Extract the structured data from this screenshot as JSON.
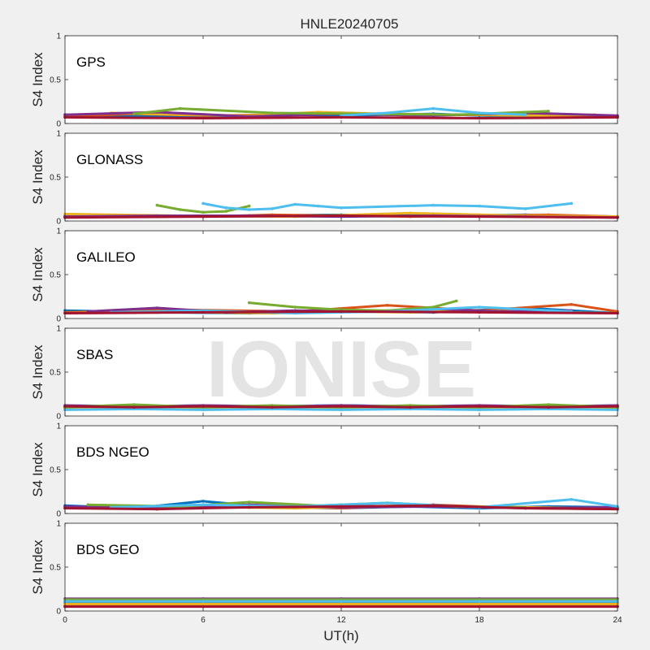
{
  "chart_data": {
    "type": "scatter",
    "title": "HNLE20240705",
    "xlabel": "UT(h)",
    "ylabel": "S4 Index",
    "xlim": [
      0,
      24
    ],
    "ylim": [
      0,
      1
    ],
    "xticks": [
      "0",
      "6",
      "12",
      "18",
      "24"
    ],
    "yticks": [
      "0",
      "0.5",
      "1"
    ],
    "grid": false,
    "watermark": "IONISE",
    "series_colors": [
      "#0072BD",
      "#D95319",
      "#EDB120",
      "#7E2F8E",
      "#77AC30",
      "#4DBEEE",
      "#A2142F"
    ],
    "panels": [
      {
        "label": "GPS",
        "series": [
          {
            "x": [
              0,
              2,
              4,
              6,
              8,
              10,
              12,
              14,
              16,
              18,
              20,
              22,
              24
            ],
            "y": [
              0.1,
              0.09,
              0.08,
              0.07,
              0.09,
              0.1,
              0.09,
              0.1,
              0.11,
              0.09,
              0.08,
              0.1,
              0.08
            ]
          },
          {
            "x": [
              0,
              3,
              6,
              9,
              12,
              15,
              18,
              21,
              24
            ],
            "y": [
              0.08,
              0.11,
              0.09,
              0.1,
              0.12,
              0.09,
              0.1,
              0.09,
              0.08
            ]
          },
          {
            "x": [
              2,
              5,
              8,
              11,
              14,
              17,
              20,
              23
            ],
            "y": [
              0.12,
              0.1,
              0.09,
              0.13,
              0.11,
              0.1,
              0.09,
              0.1
            ]
          },
          {
            "x": [
              0,
              4,
              8,
              12,
              16,
              20,
              24
            ],
            "y": [
              0.1,
              0.13,
              0.08,
              0.11,
              0.09,
              0.12,
              0.09
            ]
          },
          {
            "x": [
              3,
              5,
              9,
              13,
              17,
              21
            ],
            "y": [
              0.11,
              0.17,
              0.12,
              0.11,
              0.1,
              0.14
            ]
          },
          {
            "x": [
              12,
              14,
              16,
              18,
              20
            ],
            "y": [
              0.09,
              0.12,
              0.17,
              0.12,
              0.1
            ]
          },
          {
            "x": [
              0,
              6,
              12,
              18,
              24
            ],
            "y": [
              0.07,
              0.06,
              0.07,
              0.06,
              0.07
            ]
          }
        ]
      },
      {
        "label": "GLONASS",
        "series": [
          {
            "x": [
              0,
              4,
              8,
              12,
              16,
              20,
              24
            ],
            "y": [
              0.06,
              0.05,
              0.06,
              0.07,
              0.06,
              0.07,
              0.05
            ]
          },
          {
            "x": [
              0,
              3,
              6,
              9,
              12,
              15,
              18,
              21,
              24
            ],
            "y": [
              0.05,
              0.06,
              0.05,
              0.07,
              0.06,
              0.05,
              0.06,
              0.07,
              0.05
            ]
          },
          {
            "x": [
              0,
              5,
              10,
              15,
              20,
              24
            ],
            "y": [
              0.08,
              0.06,
              0.05,
              0.09,
              0.06,
              0.05
            ]
          },
          {
            "x": [
              0,
              4,
              8,
              12,
              16,
              20,
              24
            ],
            "y": [
              0.05,
              0.06,
              0.06,
              0.05,
              0.06,
              0.05,
              0.04
            ]
          },
          {
            "x": [
              4,
              5,
              6,
              7,
              8
            ],
            "y": [
              0.18,
              0.13,
              0.1,
              0.11,
              0.17
            ]
          },
          {
            "x": [
              6,
              7,
              8,
              9,
              10,
              11,
              12,
              16,
              18,
              20,
              22
            ],
            "y": [
              0.2,
              0.15,
              0.13,
              0.14,
              0.19,
              0.17,
              0.15,
              0.18,
              0.17,
              0.14,
              0.2
            ]
          },
          {
            "x": [
              0,
              6,
              12,
              18,
              24
            ],
            "y": [
              0.04,
              0.05,
              0.06,
              0.05,
              0.04
            ]
          }
        ]
      },
      {
        "label": "GALILEO",
        "series": [
          {
            "x": [
              0,
              4,
              8,
              12,
              16,
              20,
              24
            ],
            "y": [
              0.09,
              0.07,
              0.06,
              0.08,
              0.07,
              0.12,
              0.06
            ]
          },
          {
            "x": [
              0,
              5,
              10,
              14,
              18,
              22,
              24
            ],
            "y": [
              0.07,
              0.1,
              0.08,
              0.15,
              0.09,
              0.16,
              0.08
            ]
          },
          {
            "x": [
              0,
              3,
              6,
              9,
              12,
              15,
              18,
              21,
              24
            ],
            "y": [
              0.06,
              0.08,
              0.07,
              0.06,
              0.08,
              0.07,
              0.09,
              0.07,
              0.06
            ]
          },
          {
            "x": [
              1,
              4,
              7,
              10,
              13,
              16,
              19,
              22
            ],
            "y": [
              0.08,
              0.12,
              0.07,
              0.09,
              0.08,
              0.11,
              0.08,
              0.09
            ]
          },
          {
            "x": [
              8,
              10,
              12,
              14,
              16,
              17
            ],
            "y": [
              0.18,
              0.13,
              0.1,
              0.09,
              0.13,
              0.2
            ]
          },
          {
            "x": [
              2,
              6,
              10,
              14,
              18,
              22
            ],
            "y": [
              0.07,
              0.09,
              0.06,
              0.08,
              0.13,
              0.08
            ]
          },
          {
            "x": [
              0,
              6,
              12,
              18,
              24
            ],
            "y": [
              0.06,
              0.07,
              0.08,
              0.07,
              0.06
            ]
          }
        ]
      },
      {
        "label": "SBAS",
        "series": [
          {
            "x": [
              0,
              3,
              6,
              9,
              12,
              15,
              18,
              21,
              24
            ],
            "y": [
              0.11,
              0.12,
              0.1,
              0.11,
              0.12,
              0.11,
              0.1,
              0.12,
              0.11
            ]
          },
          {
            "x": [
              0,
              3,
              6,
              9,
              12,
              15,
              18,
              21,
              24
            ],
            "y": [
              0.09,
              0.1,
              0.09,
              0.1,
              0.09,
              0.1,
              0.09,
              0.1,
              0.09
            ]
          },
          {
            "x": [
              0,
              3,
              6,
              9,
              12,
              15,
              18,
              21,
              24
            ],
            "y": [
              0.08,
              0.09,
              0.08,
              0.09,
              0.08,
              0.09,
              0.08,
              0.09,
              0.08
            ]
          },
          {
            "x": [
              0,
              3,
              6,
              9,
              12,
              15,
              18,
              21,
              24
            ],
            "y": [
              0.12,
              0.11,
              0.12,
              0.11,
              0.12,
              0.11,
              0.12,
              0.11,
              0.12
            ]
          },
          {
            "x": [
              0,
              3,
              6,
              9,
              12,
              15,
              18,
              21,
              24
            ],
            "y": [
              0.1,
              0.13,
              0.1,
              0.12,
              0.1,
              0.12,
              0.1,
              0.13,
              0.1
            ]
          },
          {
            "x": [
              0,
              3,
              6,
              9,
              12,
              15,
              18,
              21,
              24
            ],
            "y": [
              0.07,
              0.08,
              0.07,
              0.08,
              0.07,
              0.08,
              0.07,
              0.08,
              0.07
            ]
          },
          {
            "x": [
              0,
              3,
              6,
              9,
              12,
              15,
              18,
              21,
              24
            ],
            "y": [
              0.11,
              0.1,
              0.11,
              0.1,
              0.11,
              0.1,
              0.11,
              0.1,
              0.11
            ]
          }
        ]
      },
      {
        "label": "BDS NGEO",
        "series": [
          {
            "x": [
              0,
              3,
              6,
              9,
              12,
              15,
              18,
              21,
              24
            ],
            "y": [
              0.09,
              0.06,
              0.14,
              0.07,
              0.06,
              0.08,
              0.06,
              0.08,
              0.07
            ]
          },
          {
            "x": [
              0,
              4,
              8,
              12,
              16,
              20,
              24
            ],
            "y": [
              0.07,
              0.05,
              0.09,
              0.06,
              0.1,
              0.06,
              0.05
            ]
          },
          {
            "x": [
              0,
              5,
              10,
              15,
              20,
              24
            ],
            "y": [
              0.06,
              0.08,
              0.06,
              0.09,
              0.07,
              0.06
            ]
          },
          {
            "x": [
              0,
              4,
              8,
              12,
              16,
              20,
              24
            ],
            "y": [
              0.08,
              0.06,
              0.1,
              0.07,
              0.08,
              0.06,
              0.07
            ]
          },
          {
            "x": [
              1,
              5,
              8,
              11,
              14,
              17,
              20
            ],
            "y": [
              0.1,
              0.08,
              0.13,
              0.09,
              0.12,
              0.08,
              0.07
            ]
          },
          {
            "x": [
              2,
              6,
              10,
              14,
              18,
              22,
              24
            ],
            "y": [
              0.07,
              0.1,
              0.08,
              0.12,
              0.07,
              0.16,
              0.08
            ]
          },
          {
            "x": [
              0,
              4,
              8,
              12,
              16,
              20,
              24
            ],
            "y": [
              0.06,
              0.05,
              0.07,
              0.08,
              0.09,
              0.06,
              0.05
            ]
          }
        ]
      },
      {
        "label": "BDS GEO",
        "series": [
          {
            "x": [
              0,
              6,
              12,
              18,
              24
            ],
            "y": [
              0.1,
              0.1,
              0.1,
              0.1,
              0.1
            ]
          },
          {
            "x": [
              0,
              6,
              12,
              18,
              24
            ],
            "y": [
              0.06,
              0.06,
              0.06,
              0.06,
              0.06
            ]
          },
          {
            "x": [
              0,
              6,
              12,
              18,
              24
            ],
            "y": [
              0.08,
              0.08,
              0.08,
              0.08,
              0.08
            ]
          },
          {
            "x": [
              0,
              6,
              12,
              18,
              24
            ],
            "y": [
              0.14,
              0.14,
              0.14,
              0.14,
              0.14
            ]
          },
          {
            "x": [
              0,
              6,
              12,
              18,
              24
            ],
            "y": [
              0.13,
              0.13,
              0.13,
              0.13,
              0.13
            ]
          },
          {
            "x": [
              0,
              6,
              12,
              18,
              24
            ],
            "y": [
              0.11,
              0.11,
              0.11,
              0.11,
              0.11
            ]
          },
          {
            "x": [
              0,
              6,
              12,
              18,
              24
            ],
            "y": [
              0.05,
              0.05,
              0.05,
              0.05,
              0.05
            ]
          }
        ]
      }
    ]
  }
}
